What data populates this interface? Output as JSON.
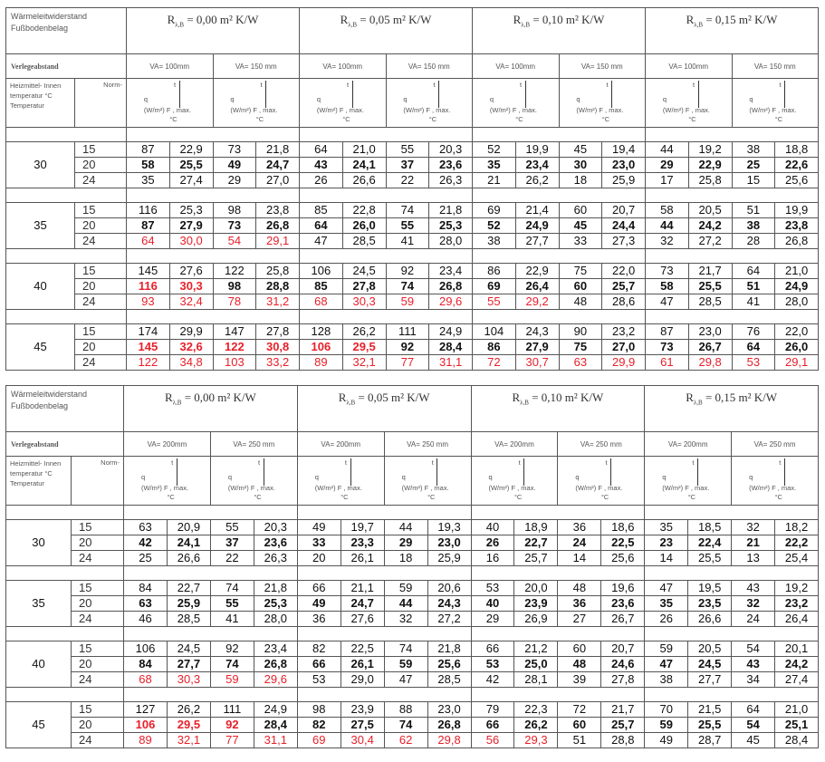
{
  "header": {
    "title_line1": "Wärmeleitwiderstand",
    "title_line2": "Fußbodenbelag",
    "laying_label": "Verlegeabstand",
    "heat_label": "Heizmittel- Innen temperatur °C Temperatur",
    "norm_label": "Norm-",
    "r_prefix": "R",
    "r_sub": "λ,B",
    "q_label": "q",
    "q_unit": "(W/m²) F , max.",
    "t_label": "t",
    "deg_label": "°C"
  },
  "colors": {
    "highlight": "#e8202a",
    "text": "#111111",
    "border": "#555555"
  },
  "tables": [
    {
      "r_values": [
        "= 0,00 m² K/W",
        "= 0,05 m² K/W",
        "= 0,10 m² K/W",
        "= 0,15 m² K/W"
      ],
      "va": [
        "VA= 100mm",
        "VA= 150 mm"
      ],
      "groups": [
        {
          "temp": "30",
          "rows": [
            {
              "n": "15",
              "v": [
                "87",
                "22,9",
                "73",
                "21,8",
                "64",
                "21,0",
                "55",
                "20,3",
                "52",
                "19,9",
                "45",
                "19,4",
                "44",
                "19,2",
                "38",
                "18,8"
              ],
              "red": []
            },
            {
              "n": "20",
              "v": [
                "58",
                "25,5",
                "49",
                "24,7",
                "43",
                "24,1",
                "37",
                "23,6",
                "35",
                "23,4",
                "30",
                "23,0",
                "29",
                "22,9",
                "25",
                "22,6"
              ],
              "red": [],
              "bold": true
            },
            {
              "n": "24",
              "v": [
                "35",
                "27,4",
                "29",
                "27,0",
                "26",
                "26,6",
                "22",
                "26,3",
                "21",
                "26,2",
                "18",
                "25,9",
                "17",
                "25,8",
                "15",
                "25,6"
              ],
              "red": []
            }
          ]
        },
        {
          "temp": "35",
          "rows": [
            {
              "n": "15",
              "v": [
                "116",
                "25,3",
                "98",
                "23,8",
                "85",
                "22,8",
                "74",
                "21,8",
                "69",
                "21,4",
                "60",
                "20,7",
                "58",
                "20,5",
                "51",
                "19,9"
              ],
              "red": []
            },
            {
              "n": "20",
              "v": [
                "87",
                "27,9",
                "73",
                "26,8",
                "64",
                "26,0",
                "55",
                "25,3",
                "52",
                "24,9",
                "45",
                "24,4",
                "44",
                "24,2",
                "38",
                "23,8"
              ],
              "red": [],
              "bold": true
            },
            {
              "n": "24",
              "v": [
                "64",
                "30,0",
                "54",
                "29,1",
                "47",
                "28,5",
                "41",
                "28,0",
                "38",
                "27,7",
                "33",
                "27,3",
                "32",
                "27,2",
                "28",
                "26,8"
              ],
              "red": [
                0,
                1,
                2,
                3
              ]
            }
          ]
        },
        {
          "temp": "40",
          "rows": [
            {
              "n": "15",
              "v": [
                "145",
                "27,6",
                "122",
                "25,8",
                "106",
                "24,5",
                "92",
                "23,4",
                "86",
                "22,9",
                "75",
                "22,0",
                "73",
                "21,7",
                "64",
                "21,0"
              ],
              "red": []
            },
            {
              "n": "20",
              "v": [
                "116",
                "30,3",
                "98",
                "28,8",
                "85",
                "27,8",
                "74",
                "26,8",
                "69",
                "26,4",
                "60",
                "25,7",
                "58",
                "25,5",
                "51",
                "24,9"
              ],
              "red": [
                0,
                1
              ],
              "bold": true
            },
            {
              "n": "24",
              "v": [
                "93",
                "32,4",
                "78",
                "31,2",
                "68",
                "30,3",
                "59",
                "29,6",
                "55",
                "29,2",
                "48",
                "28,6",
                "47",
                "28,5",
                "41",
                "28,0"
              ],
              "red": [
                0,
                1,
                2,
                3,
                4,
                5,
                6,
                7,
                8,
                9
              ]
            }
          ]
        },
        {
          "temp": "45",
          "rows": [
            {
              "n": "15",
              "v": [
                "174",
                "29,9",
                "147",
                "27,8",
                "128",
                "26,2",
                "111",
                "24,9",
                "104",
                "24,3",
                "90",
                "23,2",
                "87",
                "23,0",
                "76",
                "22,0"
              ],
              "red": []
            },
            {
              "n": "20",
              "v": [
                "145",
                "32,6",
                "122",
                "30,8",
                "106",
                "29,5",
                "92",
                "28,4",
                "86",
                "27,9",
                "75",
                "27,0",
                "73",
                "26,7",
                "64",
                "26,0"
              ],
              "red": [
                0,
                1,
                2,
                3,
                4,
                5
              ],
              "bold": true
            },
            {
              "n": "24",
              "v": [
                "122",
                "34,8",
                "103",
                "33,2",
                "89",
                "32,1",
                "77",
                "31,1",
                "72",
                "30,7",
                "63",
                "29,9",
                "61",
                "29,8",
                "53",
                "29,1"
              ],
              "red": [
                0,
                1,
                2,
                3,
                4,
                5,
                6,
                7,
                8,
                9,
                10,
                11,
                12,
                13,
                14,
                15
              ]
            }
          ]
        }
      ]
    },
    {
      "r_values": [
        "= 0,00 m² K/W",
        "= 0,05 m² K/W",
        "= 0,10 m² K/W",
        "= 0,15 m² K/W"
      ],
      "va": [
        "VA= 200mm",
        "VA= 250 mm"
      ],
      "groups": [
        {
          "temp": "30",
          "rows": [
            {
              "n": "15",
              "v": [
                "63",
                "20,9",
                "55",
                "20,3",
                "49",
                "19,7",
                "44",
                "19,3",
                "40",
                "18,9",
                "36",
                "18,6",
                "35",
                "18,5",
                "32",
                "18,2"
              ],
              "red": []
            },
            {
              "n": "20",
              "v": [
                "42",
                "24,1",
                "37",
                "23,6",
                "33",
                "23,3",
                "29",
                "23,0",
                "26",
                "22,7",
                "24",
                "22,5",
                "23",
                "22,4",
                "21",
                "22,2"
              ],
              "red": [],
              "bold": true
            },
            {
              "n": "24",
              "v": [
                "25",
                "26,6",
                "22",
                "26,3",
                "20",
                "26,1",
                "18",
                "25,9",
                "16",
                "25,7",
                "14",
                "25,6",
                "14",
                "25,5",
                "13",
                "25,4"
              ],
              "red": []
            }
          ]
        },
        {
          "temp": "35",
          "rows": [
            {
              "n": "15",
              "v": [
                "84",
                "22,7",
                "74",
                "21,8",
                "66",
                "21,1",
                "59",
                "20,6",
                "53",
                "20,0",
                "48",
                "19,6",
                "47",
                "19,5",
                "43",
                "19,2"
              ],
              "red": []
            },
            {
              "n": "20",
              "v": [
                "63",
                "25,9",
                "55",
                "25,3",
                "49",
                "24,7",
                "44",
                "24,3",
                "40",
                "23,9",
                "36",
                "23,6",
                "35",
                "23,5",
                "32",
                "23,2"
              ],
              "red": [],
              "bold": true
            },
            {
              "n": "24",
              "v": [
                "46",
                "28,5",
                "41",
                "28,0",
                "36",
                "27,6",
                "32",
                "27,2",
                "29",
                "26,9",
                "27",
                "26,7",
                "26",
                "26,6",
                "24",
                "26,4"
              ],
              "red": []
            }
          ]
        },
        {
          "temp": "40",
          "rows": [
            {
              "n": "15",
              "v": [
                "106",
                "24,5",
                "92",
                "23,4",
                "82",
                "22,5",
                "74",
                "21,8",
                "66",
                "21,2",
                "60",
                "20,7",
                "59",
                "20,5",
                "54",
                "20,1"
              ],
              "red": []
            },
            {
              "n": "20",
              "v": [
                "84",
                "27,7",
                "74",
                "26,8",
                "66",
                "26,1",
                "59",
                "25,6",
                "53",
                "25,0",
                "48",
                "24,6",
                "47",
                "24,5",
                "43",
                "24,2"
              ],
              "red": [],
              "bold": true
            },
            {
              "n": "24",
              "v": [
                "68",
                "30,3",
                "59",
                "29,6",
                "53",
                "29,0",
                "47",
                "28,5",
                "42",
                "28,1",
                "39",
                "27,8",
                "38",
                "27,7",
                "34",
                "27,4"
              ],
              "red": [
                0,
                1,
                2,
                3
              ]
            }
          ]
        },
        {
          "temp": "45",
          "rows": [
            {
              "n": "15",
              "v": [
                "127",
                "26,2",
                "111",
                "24,9",
                "98",
                "23,9",
                "88",
                "23,0",
                "79",
                "22,3",
                "72",
                "21,7",
                "70",
                "21,5",
                "64",
                "21,0"
              ],
              "red": []
            },
            {
              "n": "20",
              "v": [
                "106",
                "29,5",
                "92",
                "28,4",
                "82",
                "27,5",
                "74",
                "26,8",
                "66",
                "26,2",
                "60",
                "25,7",
                "59",
                "25,5",
                "54",
                "25,1"
              ],
              "red": [
                0,
                1,
                2
              ],
              "bold": true
            },
            {
              "n": "24",
              "v": [
                "89",
                "32,1",
                "77",
                "31,1",
                "69",
                "30,4",
                "62",
                "29,8",
                "56",
                "29,3",
                "51",
                "28,8",
                "49",
                "28,7",
                "45",
                "28,4"
              ],
              "red": [
                0,
                1,
                2,
                3,
                4,
                5,
                6,
                7,
                8,
                9
              ]
            }
          ]
        }
      ]
    }
  ]
}
